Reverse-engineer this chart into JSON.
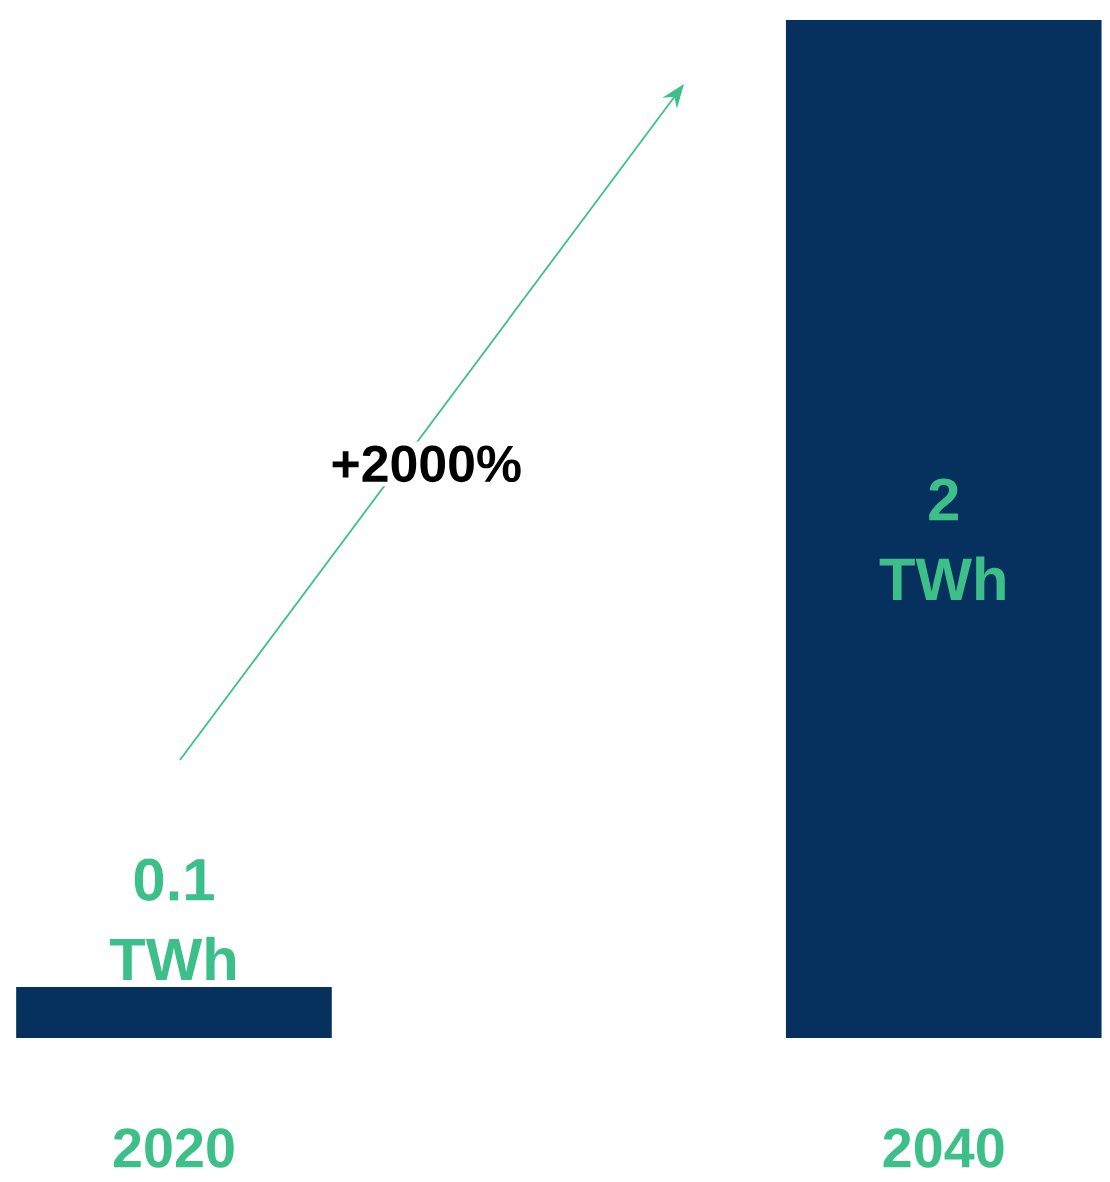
{
  "chart_data": {
    "type": "bar",
    "categories": [
      "2020",
      "2040"
    ],
    "values": [
      0.1,
      2
    ],
    "color": "#06305e",
    "value_labels": [
      "0.1 TWh",
      "2 TWh"
    ],
    "annotations": [
      "+2000%"
    ]
  }
}
